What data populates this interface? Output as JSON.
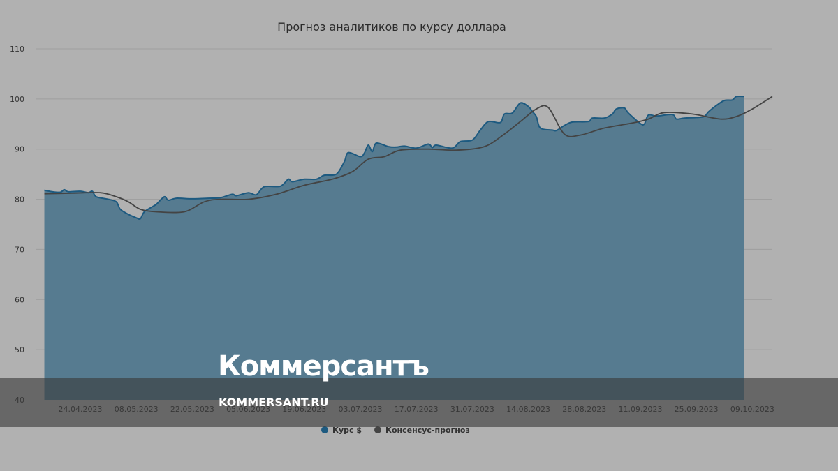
{
  "chart_data": {
    "type": "area",
    "title": "Прогноз аналитиков по курсу доллара",
    "xlabel": "",
    "ylabel": "",
    "ylim": [
      40,
      110
    ],
    "yticks": [
      40,
      50,
      60,
      70,
      80,
      90,
      100,
      110
    ],
    "xlim": [
      "2023-04-13",
      "2023-10-14"
    ],
    "xticks": [
      "2023-04-24",
      "2023-05-08",
      "2023-05-22",
      "2023-06-05",
      "2023-06-19",
      "2023-07-03",
      "2023-07-17",
      "2023-07-31",
      "2023-08-14",
      "2023-08-28",
      "2023-09-11",
      "2023-09-25",
      "2023-10-09"
    ],
    "xtick_labels": [
      "24.04.2023",
      "08.05.2023",
      "22.05.2023",
      "05.06.2023",
      "19.06.2023",
      "03.07.2023",
      "17.07.2023",
      "31.07.2023",
      "14.08.2023",
      "28.08.2023",
      "11.09.2023",
      "25.09.2023",
      "09.10.2023"
    ],
    "grid": true,
    "legend_position": "bottom",
    "series": [
      {
        "name": "Курс $",
        "kind": "area",
        "color": "#1d5a80",
        "fill": "#567b90",
        "points": [
          [
            "2023-04-15",
            81.8
          ],
          [
            "2023-04-17",
            81.5
          ],
          [
            "2023-04-19",
            81.4
          ],
          [
            "2023-04-20",
            81.9
          ],
          [
            "2023-04-21",
            81.5
          ],
          [
            "2023-04-24",
            81.6
          ],
          [
            "2023-04-26",
            81.3
          ],
          [
            "2023-04-27",
            81.6
          ],
          [
            "2023-04-28",
            80.5
          ],
          [
            "2023-05-01",
            80.0
          ],
          [
            "2023-05-03",
            79.5
          ],
          [
            "2023-05-04",
            78.0
          ],
          [
            "2023-05-06",
            77.0
          ],
          [
            "2023-05-08",
            76.3
          ],
          [
            "2023-05-09",
            76.1
          ],
          [
            "2023-05-10",
            77.5
          ],
          [
            "2023-05-12",
            78.5
          ],
          [
            "2023-05-13",
            79.0
          ],
          [
            "2023-05-15",
            80.5
          ],
          [
            "2023-05-16",
            79.8
          ],
          [
            "2023-05-18",
            80.2
          ],
          [
            "2023-05-22",
            80.1
          ],
          [
            "2023-05-26",
            80.2
          ],
          [
            "2023-05-29",
            80.3
          ],
          [
            "2023-06-01",
            81.0
          ],
          [
            "2023-06-02",
            80.7
          ],
          [
            "2023-06-05",
            81.3
          ],
          [
            "2023-06-07",
            80.9
          ],
          [
            "2023-06-09",
            82.5
          ],
          [
            "2023-06-13",
            82.6
          ],
          [
            "2023-06-15",
            84.0
          ],
          [
            "2023-06-16",
            83.5
          ],
          [
            "2023-06-19",
            84.0
          ],
          [
            "2023-06-22",
            84.0
          ],
          [
            "2023-06-24",
            84.8
          ],
          [
            "2023-06-27",
            85.0
          ],
          [
            "2023-06-29",
            87.5
          ],
          [
            "2023-06-30",
            89.3
          ],
          [
            "2023-07-03",
            88.5
          ],
          [
            "2023-07-04",
            89.2
          ],
          [
            "2023-07-05",
            90.8
          ],
          [
            "2023-07-06",
            89.5
          ],
          [
            "2023-07-07",
            91.2
          ],
          [
            "2023-07-10",
            90.5
          ],
          [
            "2023-07-12",
            90.4
          ],
          [
            "2023-07-14",
            90.6
          ],
          [
            "2023-07-17",
            90.2
          ],
          [
            "2023-07-20",
            91.0
          ],
          [
            "2023-07-21",
            90.3
          ],
          [
            "2023-07-22",
            90.8
          ],
          [
            "2023-07-26",
            90.2
          ],
          [
            "2023-07-28",
            91.5
          ],
          [
            "2023-07-31",
            91.8
          ],
          [
            "2023-08-02",
            93.8
          ],
          [
            "2023-08-04",
            95.5
          ],
          [
            "2023-08-07",
            95.3
          ],
          [
            "2023-08-08",
            97.0
          ],
          [
            "2023-08-10",
            97.2
          ],
          [
            "2023-08-12",
            99.2
          ],
          [
            "2023-08-14",
            98.5
          ],
          [
            "2023-08-15",
            97.5
          ],
          [
            "2023-08-16",
            96.5
          ],
          [
            "2023-08-17",
            94.2
          ],
          [
            "2023-08-20",
            93.8
          ],
          [
            "2023-08-21",
            93.7
          ],
          [
            "2023-08-23",
            94.7
          ],
          [
            "2023-08-25",
            95.4
          ],
          [
            "2023-08-29",
            95.5
          ],
          [
            "2023-08-30",
            96.2
          ],
          [
            "2023-09-02",
            96.2
          ],
          [
            "2023-09-04",
            97.0
          ],
          [
            "2023-09-05",
            98.0
          ],
          [
            "2023-09-07",
            98.2
          ],
          [
            "2023-09-08",
            97.2
          ],
          [
            "2023-09-11",
            95.1
          ],
          [
            "2023-09-12",
            95.0
          ],
          [
            "2023-09-13",
            96.8
          ],
          [
            "2023-09-15",
            96.6
          ],
          [
            "2023-09-19",
            96.9
          ],
          [
            "2023-09-20",
            96.0
          ],
          [
            "2023-09-22",
            96.2
          ],
          [
            "2023-09-25",
            96.3
          ],
          [
            "2023-09-27",
            96.5
          ],
          [
            "2023-09-28",
            97.4
          ],
          [
            "2023-09-30",
            98.7
          ],
          [
            "2023-10-02",
            99.7
          ],
          [
            "2023-10-04",
            99.8
          ],
          [
            "2023-10-05",
            100.5
          ],
          [
            "2023-10-07",
            100.5
          ]
        ]
      },
      {
        "name": "Консенсус-прогноз",
        "kind": "line",
        "color": "#444444",
        "points": [
          [
            "2023-04-15",
            81.1
          ],
          [
            "2023-04-22",
            81.2
          ],
          [
            "2023-04-29",
            81.3
          ],
          [
            "2023-05-03",
            80.5
          ],
          [
            "2023-05-06",
            79.5
          ],
          [
            "2023-05-09",
            78.0
          ],
          [
            "2023-05-13",
            77.5
          ],
          [
            "2023-05-20",
            77.5
          ],
          [
            "2023-05-25",
            79.5
          ],
          [
            "2023-05-29",
            80.0
          ],
          [
            "2023-06-05",
            80.0
          ],
          [
            "2023-06-12",
            81.0
          ],
          [
            "2023-06-19",
            82.8
          ],
          [
            "2023-06-26",
            84.0
          ],
          [
            "2023-07-01",
            85.5
          ],
          [
            "2023-07-05",
            88.0
          ],
          [
            "2023-07-09",
            88.5
          ],
          [
            "2023-07-13",
            89.8
          ],
          [
            "2023-07-20",
            90.0
          ],
          [
            "2023-07-27",
            89.8
          ],
          [
            "2023-08-03",
            90.5
          ],
          [
            "2023-08-08",
            93.0
          ],
          [
            "2023-08-12",
            95.5
          ],
          [
            "2023-08-16",
            98.0
          ],
          [
            "2023-08-19",
            98.3
          ],
          [
            "2023-08-23",
            93.0
          ],
          [
            "2023-08-27",
            92.8
          ],
          [
            "2023-09-02",
            94.2
          ],
          [
            "2023-09-09",
            95.2
          ],
          [
            "2023-09-13",
            96.0
          ],
          [
            "2023-09-17",
            97.3
          ],
          [
            "2023-09-24",
            97.0
          ],
          [
            "2023-10-01",
            96.0
          ],
          [
            "2023-10-05",
            96.5
          ],
          [
            "2023-10-09",
            98.0
          ],
          [
            "2023-10-14",
            100.5
          ]
        ]
      }
    ]
  },
  "watermark": {
    "logo": "Коммерсантъ",
    "url": "KOMMERSANT.RU"
  }
}
